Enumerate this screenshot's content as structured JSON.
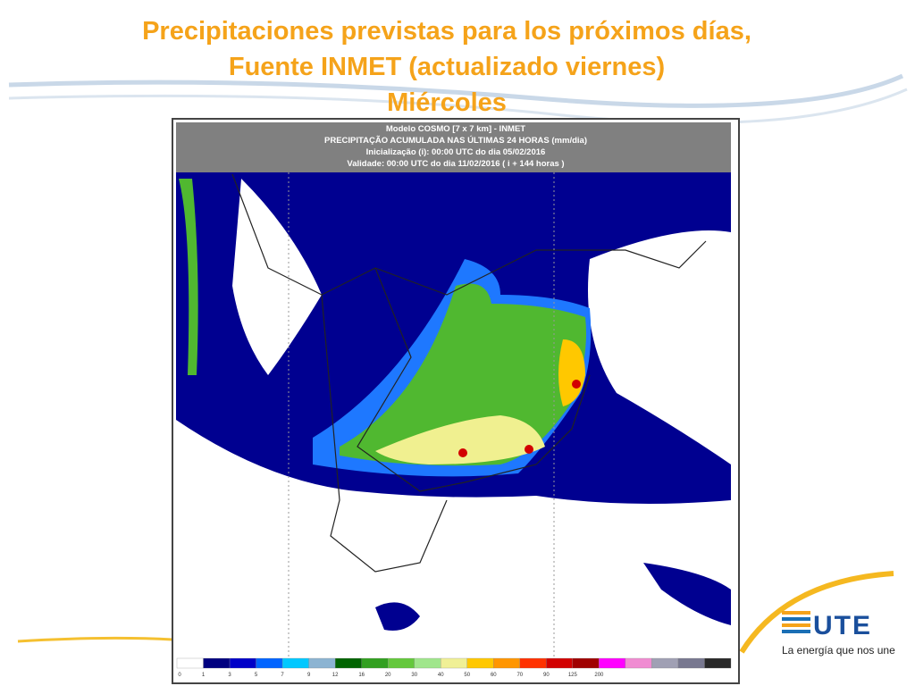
{
  "header": {
    "title_lines": [
      "Precipitaciones previstas para los próximos días,",
      "Fuente INMET (actualizado viernes)",
      "Miércoles"
    ]
  },
  "map": {
    "info_lines": [
      "Modelo COSMO [7 x 7 km] - INMET",
      "PRECIPITAÇÃO ACUMULADA NAS ÚLTIMAS 24 HORAS (mm/dia)",
      "Inicialização (i): 00:00 UTC do dia 05/02/2016",
      "Validade: 00:00 UTC do dia 11/02/2016 ( i + 144 horas )"
    ],
    "colorbar": {
      "labels": [
        "0",
        "1",
        "3",
        "5",
        "7",
        "9",
        "12",
        "16",
        "20",
        "30",
        "40",
        "50",
        "60",
        "70",
        "90",
        "125",
        "200"
      ],
      "colors": [
        "#ffffff",
        "#000080",
        "#0000c8",
        "#0064ff",
        "#00c8ff",
        "#8cb4d2",
        "#006400",
        "#32a020",
        "#64c83c",
        "#a0e68c",
        "#f0f096",
        "#ffc800",
        "#ff9600",
        "#ff3200",
        "#d20000",
        "#a00000",
        "#ff00ff",
        "#f08cd2",
        "#a0a0b4",
        "#787890",
        "#282828"
      ]
    }
  },
  "logo": {
    "brand": "UTE",
    "tagline": "La energía que nos une"
  }
}
